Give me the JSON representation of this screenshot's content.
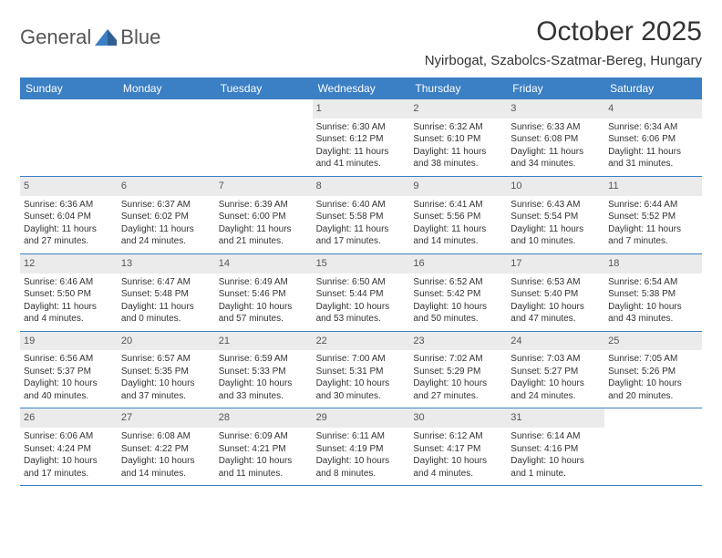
{
  "brand": {
    "name_part1": "General",
    "name_part2": "Blue"
  },
  "header": {
    "month_title": "October 2025",
    "location": "Nyirbogat, Szabolcs-Szatmar-Bereg, Hungary"
  },
  "colors": {
    "header_blue": "#3b7fc4",
    "daynum_bg": "#ebebeb",
    "text": "#333333",
    "background": "#ffffff"
  },
  "calendar": {
    "day_names": [
      "Sunday",
      "Monday",
      "Tuesday",
      "Wednesday",
      "Thursday",
      "Friday",
      "Saturday"
    ],
    "weeks": [
      [
        null,
        null,
        null,
        {
          "n": "1",
          "sr": "Sunrise: 6:30 AM",
          "ss": "Sunset: 6:12 PM",
          "dl": "Daylight: 11 hours and 41 minutes."
        },
        {
          "n": "2",
          "sr": "Sunrise: 6:32 AM",
          "ss": "Sunset: 6:10 PM",
          "dl": "Daylight: 11 hours and 38 minutes."
        },
        {
          "n": "3",
          "sr": "Sunrise: 6:33 AM",
          "ss": "Sunset: 6:08 PM",
          "dl": "Daylight: 11 hours and 34 minutes."
        },
        {
          "n": "4",
          "sr": "Sunrise: 6:34 AM",
          "ss": "Sunset: 6:06 PM",
          "dl": "Daylight: 11 hours and 31 minutes."
        }
      ],
      [
        {
          "n": "5",
          "sr": "Sunrise: 6:36 AM",
          "ss": "Sunset: 6:04 PM",
          "dl": "Daylight: 11 hours and 27 minutes."
        },
        {
          "n": "6",
          "sr": "Sunrise: 6:37 AM",
          "ss": "Sunset: 6:02 PM",
          "dl": "Daylight: 11 hours and 24 minutes."
        },
        {
          "n": "7",
          "sr": "Sunrise: 6:39 AM",
          "ss": "Sunset: 6:00 PM",
          "dl": "Daylight: 11 hours and 21 minutes."
        },
        {
          "n": "8",
          "sr": "Sunrise: 6:40 AM",
          "ss": "Sunset: 5:58 PM",
          "dl": "Daylight: 11 hours and 17 minutes."
        },
        {
          "n": "9",
          "sr": "Sunrise: 6:41 AM",
          "ss": "Sunset: 5:56 PM",
          "dl": "Daylight: 11 hours and 14 minutes."
        },
        {
          "n": "10",
          "sr": "Sunrise: 6:43 AM",
          "ss": "Sunset: 5:54 PM",
          "dl": "Daylight: 11 hours and 10 minutes."
        },
        {
          "n": "11",
          "sr": "Sunrise: 6:44 AM",
          "ss": "Sunset: 5:52 PM",
          "dl": "Daylight: 11 hours and 7 minutes."
        }
      ],
      [
        {
          "n": "12",
          "sr": "Sunrise: 6:46 AM",
          "ss": "Sunset: 5:50 PM",
          "dl": "Daylight: 11 hours and 4 minutes."
        },
        {
          "n": "13",
          "sr": "Sunrise: 6:47 AM",
          "ss": "Sunset: 5:48 PM",
          "dl": "Daylight: 11 hours and 0 minutes."
        },
        {
          "n": "14",
          "sr": "Sunrise: 6:49 AM",
          "ss": "Sunset: 5:46 PM",
          "dl": "Daylight: 10 hours and 57 minutes."
        },
        {
          "n": "15",
          "sr": "Sunrise: 6:50 AM",
          "ss": "Sunset: 5:44 PM",
          "dl": "Daylight: 10 hours and 53 minutes."
        },
        {
          "n": "16",
          "sr": "Sunrise: 6:52 AM",
          "ss": "Sunset: 5:42 PM",
          "dl": "Daylight: 10 hours and 50 minutes."
        },
        {
          "n": "17",
          "sr": "Sunrise: 6:53 AM",
          "ss": "Sunset: 5:40 PM",
          "dl": "Daylight: 10 hours and 47 minutes."
        },
        {
          "n": "18",
          "sr": "Sunrise: 6:54 AM",
          "ss": "Sunset: 5:38 PM",
          "dl": "Daylight: 10 hours and 43 minutes."
        }
      ],
      [
        {
          "n": "19",
          "sr": "Sunrise: 6:56 AM",
          "ss": "Sunset: 5:37 PM",
          "dl": "Daylight: 10 hours and 40 minutes."
        },
        {
          "n": "20",
          "sr": "Sunrise: 6:57 AM",
          "ss": "Sunset: 5:35 PM",
          "dl": "Daylight: 10 hours and 37 minutes."
        },
        {
          "n": "21",
          "sr": "Sunrise: 6:59 AM",
          "ss": "Sunset: 5:33 PM",
          "dl": "Daylight: 10 hours and 33 minutes."
        },
        {
          "n": "22",
          "sr": "Sunrise: 7:00 AM",
          "ss": "Sunset: 5:31 PM",
          "dl": "Daylight: 10 hours and 30 minutes."
        },
        {
          "n": "23",
          "sr": "Sunrise: 7:02 AM",
          "ss": "Sunset: 5:29 PM",
          "dl": "Daylight: 10 hours and 27 minutes."
        },
        {
          "n": "24",
          "sr": "Sunrise: 7:03 AM",
          "ss": "Sunset: 5:27 PM",
          "dl": "Daylight: 10 hours and 24 minutes."
        },
        {
          "n": "25",
          "sr": "Sunrise: 7:05 AM",
          "ss": "Sunset: 5:26 PM",
          "dl": "Daylight: 10 hours and 20 minutes."
        }
      ],
      [
        {
          "n": "26",
          "sr": "Sunrise: 6:06 AM",
          "ss": "Sunset: 4:24 PM",
          "dl": "Daylight: 10 hours and 17 minutes."
        },
        {
          "n": "27",
          "sr": "Sunrise: 6:08 AM",
          "ss": "Sunset: 4:22 PM",
          "dl": "Daylight: 10 hours and 14 minutes."
        },
        {
          "n": "28",
          "sr": "Sunrise: 6:09 AM",
          "ss": "Sunset: 4:21 PM",
          "dl": "Daylight: 10 hours and 11 minutes."
        },
        {
          "n": "29",
          "sr": "Sunrise: 6:11 AM",
          "ss": "Sunset: 4:19 PM",
          "dl": "Daylight: 10 hours and 8 minutes."
        },
        {
          "n": "30",
          "sr": "Sunrise: 6:12 AM",
          "ss": "Sunset: 4:17 PM",
          "dl": "Daylight: 10 hours and 4 minutes."
        },
        {
          "n": "31",
          "sr": "Sunrise: 6:14 AM",
          "ss": "Sunset: 4:16 PM",
          "dl": "Daylight: 10 hours and 1 minute."
        },
        null
      ]
    ]
  }
}
